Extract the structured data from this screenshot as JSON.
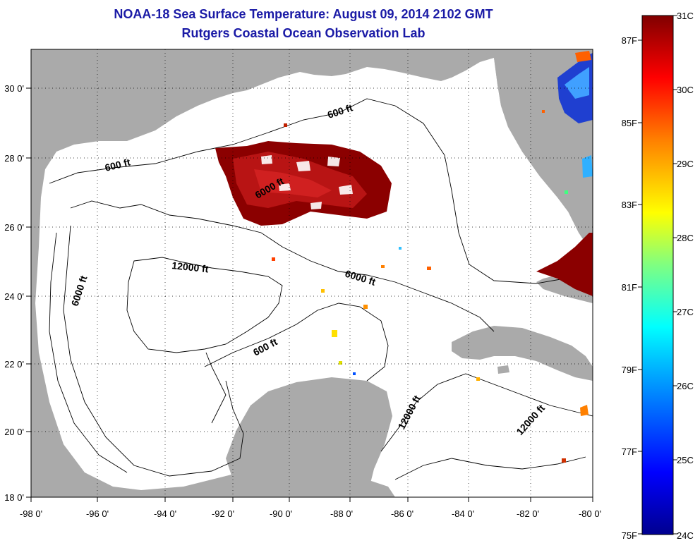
{
  "title": {
    "line1": "NOAA-18 Sea Surface Temperature:  August 09, 2014 2102 GMT",
    "line2": "Rutgers Coastal Ocean Observation Lab"
  },
  "map": {
    "lon_labels": [
      "-98 0'",
      "-96 0'",
      "-94 0'",
      "-92 0'",
      "-90 0'",
      "-88 0'",
      "-86 0'",
      "-84 0'",
      "-82 0'",
      "-80 0'"
    ],
    "lat_labels": [
      "30 0'",
      "28 0'",
      "26 0'",
      "24 0'",
      "22 0'",
      "20 0'",
      "18 0'"
    ],
    "contour_labels": [
      "600 ft",
      "600 ft",
      "600 ft",
      "6000 ft",
      "6000 ft",
      "12000 ft",
      "12000 ft",
      "12000 ft",
      "6000 ft"
    ],
    "land_color": "#aaaaaa",
    "ocean_color": "#ffffff"
  },
  "colorbar": {
    "celsius_labels": [
      "31C",
      "30C",
      "29C",
      "28C",
      "27C",
      "26C",
      "25C",
      "24C"
    ],
    "fahrenheit_labels": [
      "87F",
      "85F",
      "83F",
      "81F",
      "79F",
      "77F",
      "75F"
    ],
    "colors": [
      "#00008f",
      "#0000ff",
      "#00a0ff",
      "#00ffff",
      "#80ff80",
      "#ffff00",
      "#ff8000",
      "#ff0000",
      "#800000"
    ]
  }
}
